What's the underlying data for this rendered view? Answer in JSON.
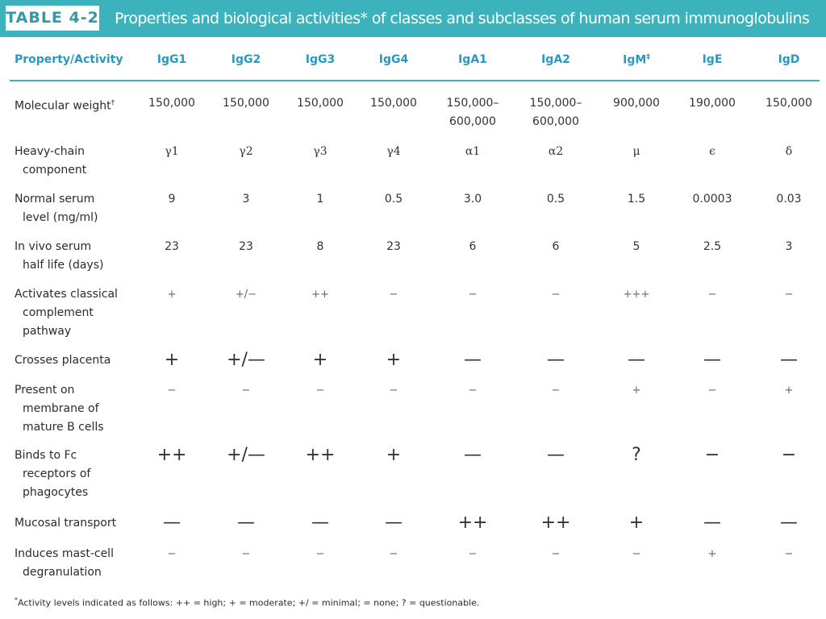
{
  "header": {
    "tag": "TABLE 4-2",
    "title": "Properties and biological activities* of classes and subclasses of human serum immunoglobulins"
  },
  "colors": {
    "accent": "#3cb3bc",
    "header_text": "#2a98bf",
    "body_text": "#2b2b2b"
  },
  "columns": [
    {
      "label": "Property/Activity",
      "mark": ""
    },
    {
      "label": "IgG1",
      "mark": ""
    },
    {
      "label": "IgG2",
      "mark": ""
    },
    {
      "label": "IgG3",
      "mark": ""
    },
    {
      "label": "IgG4",
      "mark": ""
    },
    {
      "label": "IgA1",
      "mark": ""
    },
    {
      "label": "IgA2",
      "mark": ""
    },
    {
      "label": "IgM",
      "mark": "‡"
    },
    {
      "label": "IgE",
      "mark": ""
    },
    {
      "label": "IgD",
      "mark": ""
    }
  ],
  "rows": [
    {
      "label_lines": [
        "Molecular weight"
      ],
      "label_mark": "†",
      "values": [
        "150,000",
        "150,000",
        "150,000",
        "150,000",
        "150,000–\n600,000",
        "150,000–\n600,000",
        "900,000",
        "190,000",
        "150,000"
      ]
    },
    {
      "label_lines": [
        "Heavy-chain",
        "component"
      ],
      "values": [
        "γ1",
        "γ2",
        "γ3",
        "γ4",
        "α1",
        "α2",
        "μ",
        "ϵ",
        "δ"
      ]
    },
    {
      "label_lines": [
        "Normal serum",
        "level (mg/ml)"
      ],
      "values": [
        "9",
        "3",
        "1",
        "0.5",
        "3.0",
        "0.5",
        "1.5",
        "0.0003",
        "0.03"
      ]
    },
    {
      "label_lines": [
        "In vivo serum",
        "half life (days)"
      ],
      "values": [
        "23",
        "23",
        "8",
        "23",
        "6",
        "6",
        "5",
        "2.5",
        "3"
      ]
    },
    {
      "label_lines": [
        "Activates classical",
        "complement",
        "pathway"
      ],
      "values": [
        "+",
        "+/−",
        "++",
        "−",
        "−",
        "−",
        "+++",
        "−",
        "−"
      ]
    },
    {
      "label_lines": [
        "Crosses placenta"
      ],
      "values": [
        "+",
        "+/—",
        "+",
        "+",
        "—",
        "—",
        "—",
        "—",
        "—"
      ]
    },
    {
      "label_lines": [
        "Present on",
        "membrane of",
        "mature B cells"
      ],
      "values": [
        "−",
        "−",
        "−",
        "−",
        "−",
        "−",
        "+",
        "−",
        "+"
      ]
    },
    {
      "label_lines": [
        "Binds to Fc",
        "receptors of",
        "phagocytes"
      ],
      "values": [
        "++",
        "+/—",
        "++",
        "+",
        "—",
        "—",
        "?",
        "−",
        "−"
      ]
    },
    {
      "label_lines": [
        "Mucosal transport"
      ],
      "values": [
        "—",
        "—",
        "—",
        "—",
        "++",
        "++",
        "+",
        "—",
        "—"
      ]
    },
    {
      "label_lines": [
        "Induces mast-cell",
        "degranulation"
      ],
      "values": [
        "−",
        "−",
        "−",
        "−",
        "−",
        "−",
        "−",
        "+",
        "−"
      ]
    }
  ],
  "footnote": {
    "mark": "*",
    "text": "Activity levels indicated as follows: ++ = high; + = moderate; +/   = minimal;    = none; ? = questionable."
  }
}
